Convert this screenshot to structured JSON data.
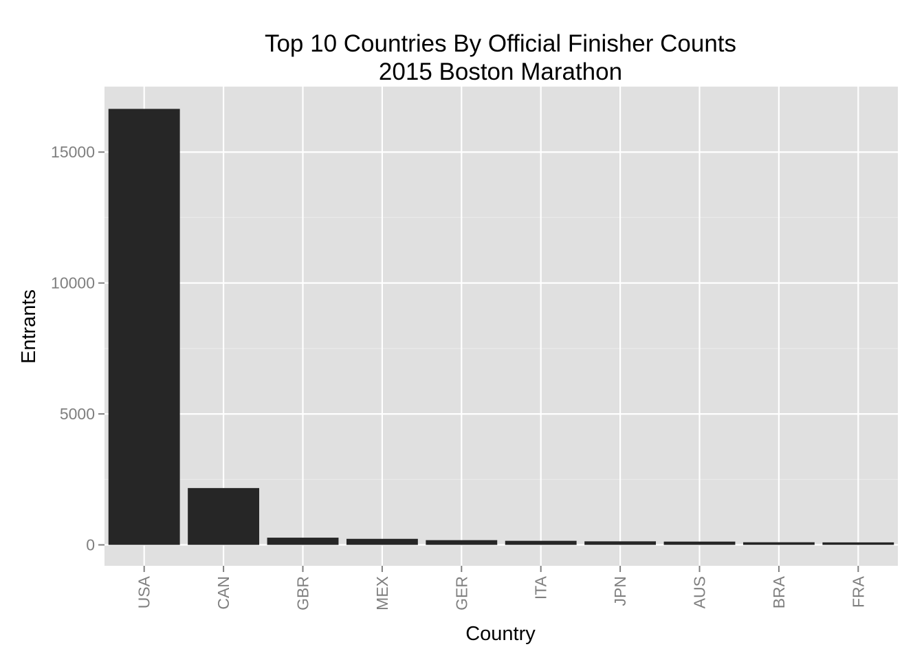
{
  "chart_data": {
    "type": "bar",
    "title": "Top 10 Countries By Official Finisher Counts",
    "subtitle": "2015 Boston Marathon",
    "xlabel": "Country",
    "ylabel": "Entrants",
    "categories": [
      "USA",
      "CAN",
      "GBR",
      "MEX",
      "GER",
      "ITA",
      "JPN",
      "AUS",
      "BRA",
      "FRA"
    ],
    "values": [
      16650,
      2170,
      275,
      230,
      180,
      155,
      135,
      125,
      100,
      95
    ],
    "ylim": [
      -800,
      17500
    ],
    "yticks": [
      0,
      5000,
      10000,
      15000
    ],
    "grid": true,
    "legend": "none",
    "colors": {
      "bar": "#262626",
      "panel": "#e0e0e0",
      "grid_major": "#ffffff",
      "grid_minor": "#ececec",
      "tick_text": "#7f7f7f",
      "tick_mark": "#7f7f7f"
    }
  }
}
